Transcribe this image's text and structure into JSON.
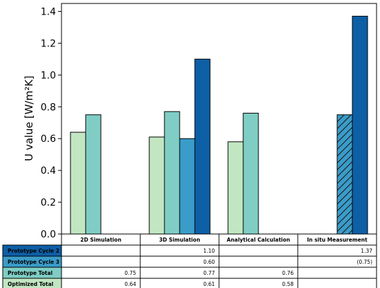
{
  "chart_data": {
    "type": "bar",
    "ylabel": "U value [W/m²K]",
    "ylim": [
      0,
      1.45
    ],
    "yticks": [
      "0.0",
      "0.2",
      "0.4",
      "0.6",
      "0.8",
      "1.0",
      "1.2",
      "1.4"
    ],
    "categories": [
      "2D Simulation",
      "3D Simulation",
      "Analytical Calculation",
      "In situ Measurement"
    ],
    "series": [
      {
        "name": "Optimized Total",
        "color": "#c2e6c2",
        "values": [
          0.64,
          0.61,
          0.58,
          null
        ]
      },
      {
        "name": "Prototype Total",
        "color": "#7fcdc4",
        "values": [
          0.75,
          0.77,
          0.76,
          null
        ]
      },
      {
        "name": "Prototype Cycle 3",
        "color": "#3a9cc9",
        "values": [
          null,
          0.6,
          null,
          0.75
        ],
        "hatched_category_index": 3
      },
      {
        "name": "Prototype Cycle 2",
        "color": "#0d5fa6",
        "values": [
          null,
          1.1,
          null,
          1.37
        ]
      }
    ],
    "table": {
      "rows": [
        {
          "name": "Prototype Cycle 2",
          "color": "#0d5fa6",
          "text_color": "#000000",
          "cells": [
            "",
            "1.10",
            "",
            "1.37"
          ]
        },
        {
          "name": "Prototype Cycle 3",
          "color": "#3a9cc9",
          "text_color": "#000000",
          "cells": [
            "",
            "0.60",
            "",
            "(0.75)"
          ]
        },
        {
          "name": "Prototype Total",
          "color": "#7fcdc4",
          "text_color": "#000000",
          "cells": [
            "0.75",
            "0.77",
            "0.76",
            ""
          ]
        },
        {
          "name": "Optimized Total",
          "color": "#c2e6c2",
          "text_color": "#000000",
          "cells": [
            "0.64",
            "0.61",
            "0.58",
            ""
          ]
        }
      ]
    },
    "grid": false,
    "legend": "none"
  }
}
